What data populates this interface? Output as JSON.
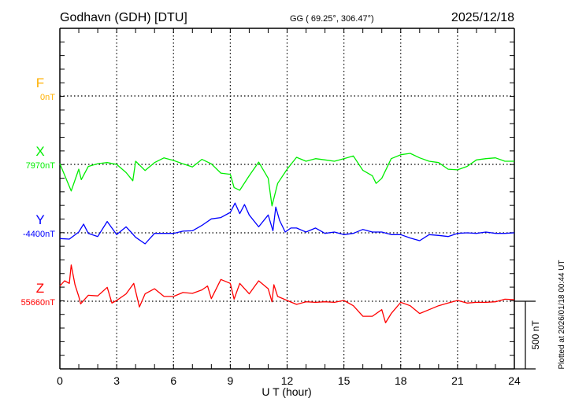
{
  "header": {
    "station": "Godhavn (GDH)  [DTU]",
    "coords": "GG ( 69.25°, 306.47°)",
    "date": "2025/12/18"
  },
  "footer": {
    "plotted": "Plotted at 2026/01/18 00:44 UT",
    "scale_label": "500 nT"
  },
  "colors": {
    "F": "#ffb000",
    "X": "#00ee00",
    "Y": "#0000ff",
    "Z": "#ff0000"
  },
  "chart_data": {
    "type": "line",
    "title": "Godhavn (GDH)  [DTU]",
    "xlabel": "U T (hour)",
    "xlim": [
      0,
      24
    ],
    "xticks": [
      "0",
      "3",
      "6",
      "9",
      "12",
      "15",
      "18",
      "21",
      "24"
    ],
    "units_per_trace_ylim_nT": [
      -500,
      500
    ],
    "scale_bar_nT": 500,
    "grid": true,
    "series": [
      {
        "name": "F",
        "baseline_label": "0nT",
        "x": [],
        "y": []
      },
      {
        "name": "X",
        "baseline_label": "7970nT",
        "x": [
          0,
          0.6,
          1.0,
          1.13,
          1.5,
          2,
          2.5,
          3,
          3.5,
          3.85,
          4,
          4.5,
          5,
          5.5,
          6,
          6.5,
          7,
          7.5,
          8,
          8.5,
          9,
          9.2,
          9.5,
          10,
          10.5,
          11,
          11.2,
          11.5,
          12,
          12.5,
          13,
          13.5,
          14,
          14.5,
          15,
          15.5,
          16,
          16.5,
          16.7,
          17,
          17.5,
          18,
          18.5,
          19,
          19.5,
          20,
          20.5,
          21,
          21.5,
          22,
          22.5,
          23,
          23.5,
          24
        ],
        "y": [
          5,
          -195,
          -35,
          -112,
          -15,
          5,
          13,
          0,
          -60,
          -120,
          23,
          -45,
          13,
          48,
          29,
          4,
          -19,
          37,
          4,
          -64,
          -73,
          -170,
          -190,
          -83,
          17,
          -102,
          -305,
          -140,
          -35,
          52,
          23,
          42,
          33,
          23,
          42,
          62,
          -44,
          -83,
          -140,
          -102,
          42,
          71,
          81,
          48,
          23,
          13,
          -35,
          -40,
          -15,
          33,
          42,
          48,
          23,
          23
        ]
      },
      {
        "name": "Y",
        "baseline_label": "-4400nT",
        "x": [
          0,
          0.5,
          1,
          1.25,
          1.5,
          2,
          2.5,
          3,
          3.5,
          3.75,
          4,
          4.5,
          5,
          5.5,
          6,
          6.5,
          7,
          7.5,
          8,
          8.5,
          9,
          9.25,
          9.5,
          9.75,
          10,
          10.5,
          11,
          11.25,
          11.4,
          11.6,
          11.9,
          12.2,
          12.5,
          13,
          13.5,
          14,
          14.5,
          15,
          15.5,
          16,
          16.5,
          17,
          17.5,
          18,
          18.5,
          19,
          19.5,
          20,
          20.5,
          21,
          21.5,
          22,
          22.5,
          23,
          23.5,
          24
        ],
        "y": [
          -42,
          -46,
          6,
          64,
          -4,
          -27,
          83,
          -13,
          44,
          6,
          -33,
          -81,
          -4,
          -4,
          -4,
          12,
          15,
          54,
          102,
          112,
          150,
          218,
          141,
          208,
          131,
          44,
          131,
          15,
          189,
          92,
          6,
          35,
          35,
          6,
          35,
          -4,
          6,
          -13,
          -4,
          25,
          6,
          6,
          -13,
          -13,
          -38,
          -58,
          -13,
          -19,
          -27,
          -4,
          0,
          -4,
          6,
          -4,
          -4,
          0
        ]
      },
      {
        "name": "Z",
        "baseline_label": "55660nT",
        "x": [
          0,
          0.25,
          0.5,
          0.6,
          0.8,
          1.0,
          1.1,
          1.5,
          2,
          2.5,
          2.75,
          3,
          3.5,
          3.9,
          4.2,
          4.5,
          5,
          5.5,
          6,
          6.5,
          7,
          7.5,
          7.8,
          8,
          8.5,
          9,
          9.2,
          9.5,
          10,
          10.5,
          11,
          11.2,
          11.3,
          11.5,
          12,
          12.5,
          13,
          13.5,
          14,
          14.5,
          15,
          15.5,
          16,
          16.5,
          17,
          17.2,
          17.5,
          18,
          18.5,
          19,
          19.5,
          20,
          20.5,
          21,
          21.5,
          22,
          22.5,
          23,
          23.5,
          24
        ],
        "y": [
          112,
          150,
          131,
          266,
          121,
          35,
          -19,
          44,
          39,
          102,
          -13,
          6,
          54,
          131,
          -42,
          54,
          92,
          35,
          35,
          64,
          58,
          83,
          112,
          19,
          160,
          131,
          15,
          131,
          54,
          150,
          92,
          -4,
          121,
          35,
          6,
          -23,
          -4,
          -8,
          -4,
          -8,
          6,
          -33,
          -110,
          -110,
          -62,
          -158,
          -90,
          -8,
          -33,
          -90,
          -62,
          -33,
          -13,
          6,
          -13,
          -8,
          -8,
          -4,
          15,
          12
        ]
      }
    ]
  }
}
